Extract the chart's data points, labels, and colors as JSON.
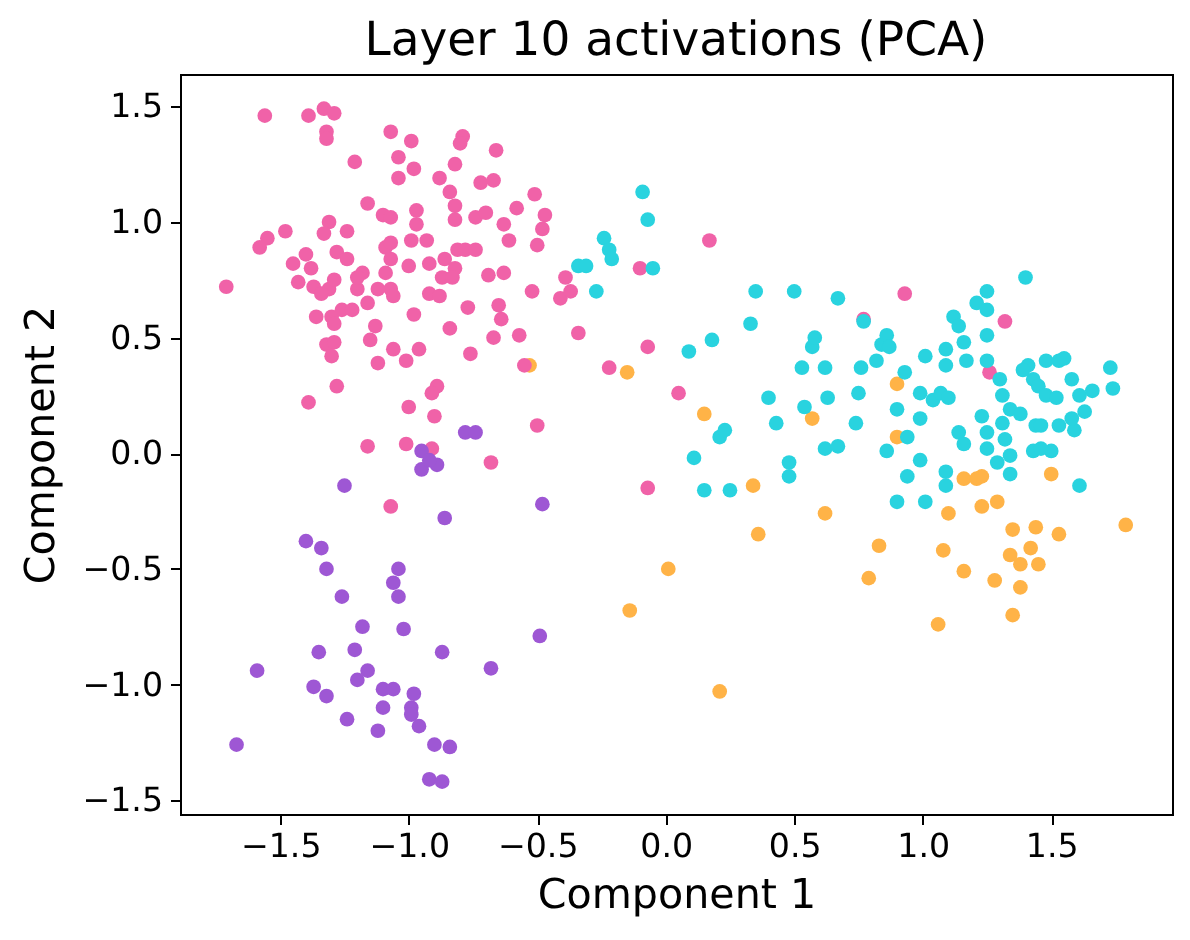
{
  "chart_data": {
    "type": "scatter",
    "title": "Layer 10 activations (PCA)",
    "xlabel": "Component 1",
    "ylabel": "Component 2",
    "marker": "circle",
    "xlim": [
      -1.89,
      1.97
    ],
    "ylim": [
      -1.56,
      1.64
    ],
    "xticks": [
      {
        "value": -1.5,
        "label": "−1.5"
      },
      {
        "value": -1,
        "label": "−1.0"
      },
      {
        "value": -0.5,
        "label": "−0.5"
      },
      {
        "value": 0,
        "label": "0.0"
      },
      0.5,
      {
        "value": 1,
        "label": "1.0"
      },
      1.5
    ],
    "yticks": [
      {
        "value": -1.5,
        "label": "−1.5"
      },
      {
        "value": -1,
        "label": "−1.0"
      },
      {
        "value": -0.5,
        "label": "−0.5"
      },
      {
        "value": 0,
        "label": "0.0"
      },
      0.5,
      {
        "value": 1,
        "label": "1.0"
      },
      1.5
    ],
    "series": [
      {
        "color": "#ffb347",
        "x": [
          -0.15,
          -0.53,
          0.15,
          0.34,
          0.36,
          0.01,
          -0.14,
          0.21,
          0.57,
          0.62,
          0.83,
          0.79,
          0.9,
          0.9,
          1.06,
          1.08,
          1.1,
          1.16,
          1.21,
          1.23,
          1.23,
          1.29,
          1.16,
          1.35,
          1.44,
          1.53,
          1.42,
          1.34,
          1.38,
          1.45,
          1.28,
          1.38,
          1.35,
          1.79,
          1.5
        ],
        "values": [
          0.35,
          0.38,
          0.17,
          -0.14,
          -0.35,
          -0.5,
          -0.68,
          -1.03,
          0.15,
          -0.26,
          -0.4,
          -0.54,
          0.3,
          0.07,
          -0.74,
          -0.42,
          -0.26,
          -0.11,
          -0.11,
          -0.1,
          -0.23,
          -0.21,
          -0.51,
          -0.33,
          -0.32,
          -0.35,
          -0.41,
          -0.44,
          -0.48,
          -0.48,
          -0.55,
          -0.58,
          -0.7,
          -0.31,
          -0.09
        ]
      },
      {
        "color": "#f062a8",
        "x": [
          -1.56,
          -1.39,
          -1.33,
          -1.29,
          -1.32,
          -1.32,
          -1.07,
          -0.99,
          -0.79,
          -0.8,
          -0.66,
          -1.21,
          -1.04,
          -0.98,
          -1.04,
          -0.82,
          -0.88,
          -0.84,
          -0.72,
          -0.67,
          -0.51,
          -1.16,
          -1.1,
          -1.07,
          -0.97,
          -0.97,
          -0.82,
          -0.82,
          -0.74,
          -0.7,
          -0.63,
          -0.58,
          -0.47,
          -0.48,
          -0.61,
          -0.5,
          -1.48,
          -1.55,
          -1.58,
          -1.31,
          -1.33,
          -1.24,
          -1.28,
          -1.24,
          -1.4,
          -1.45,
          -1.38,
          -1.43,
          -1.71,
          -1.37,
          -1.31,
          -1.2,
          -1.18,
          -1.09,
          -1.07,
          -1.07,
          -0.99,
          -0.93,
          -1.0,
          -0.92,
          -0.86,
          -0.81,
          -0.78,
          -0.74,
          -0.82,
          -0.87,
          -0.83,
          -1.09,
          -1.07,
          -1.06,
          -1.12,
          -1.2,
          -1.29,
          -1.34,
          -1.36,
          -1.3,
          -1.26,
          -1.22,
          -1.29,
          -1.16,
          -1.13,
          -1.15,
          -1.32,
          -1.29,
          -1.3,
          -1.28,
          -1.39,
          -1.12,
          -1.06,
          -1.01,
          -0.96,
          -0.98,
          -0.92,
          -0.88,
          -0.77,
          -0.84,
          -0.76,
          -0.65,
          -0.64,
          -0.69,
          -0.63,
          -0.67,
          -0.57,
          -0.52,
          -0.55,
          -0.89,
          -0.91,
          -1.0,
          -0.9,
          -1.16,
          -1.01,
          -0.91,
          -0.68,
          -0.5,
          -1.07,
          -0.41,
          -0.39,
          -0.37,
          -0.34,
          -0.22,
          -0.1,
          -0.07,
          0.05,
          0.17,
          -0.07,
          0.93,
          0.77,
          1.32,
          1.26
        ],
        "values": [
          1.46,
          1.46,
          1.49,
          1.47,
          1.39,
          1.36,
          1.39,
          1.35,
          1.37,
          1.34,
          1.31,
          1.26,
          1.28,
          1.23,
          1.19,
          1.25,
          1.19,
          1.13,
          1.17,
          1.18,
          1.12,
          1.08,
          1.03,
          1.02,
          1.05,
          0.99,
          1.07,
          1.01,
          1.02,
          1.04,
          0.99,
          1.06,
          1.03,
          0.97,
          0.92,
          0.9,
          0.96,
          0.93,
          0.89,
          1.0,
          0.95,
          0.96,
          0.87,
          0.84,
          0.86,
          0.82,
          0.8,
          0.74,
          0.72,
          0.72,
          0.71,
          0.71,
          0.78,
          0.89,
          0.91,
          0.84,
          0.92,
          0.92,
          0.81,
          0.82,
          0.84,
          0.88,
          0.88,
          0.88,
          0.8,
          0.76,
          0.76,
          0.78,
          0.71,
          0.68,
          0.71,
          0.76,
          0.75,
          0.69,
          0.59,
          0.59,
          0.62,
          0.62,
          0.56,
          0.65,
          0.55,
          0.49,
          0.47,
          0.48,
          0.42,
          0.29,
          0.22,
          0.39,
          0.45,
          0.4,
          0.45,
          0.6,
          0.69,
          0.68,
          0.63,
          0.54,
          0.43,
          0.64,
          0.58,
          0.77,
          0.78,
          0.5,
          0.51,
          0.7,
          0.38,
          0.29,
          0.26,
          0.2,
          0.16,
          0.03,
          0.04,
          0.02,
          -0.04,
          0.12,
          -0.23,
          0.67,
          0.76,
          0.7,
          0.52,
          0.37,
          0.8,
          0.46,
          0.26,
          0.92,
          -0.15,
          0.69,
          0.58,
          0.57,
          0.35
        ]
      },
      {
        "color": "#9e57d4",
        "x": [
          -0.78,
          -0.74,
          -0.95,
          -0.89,
          -0.95,
          -0.92,
          -1.25,
          -0.86,
          -0.48,
          -1.4,
          -1.34,
          -1.32,
          -1.26,
          -1.04,
          -1.06,
          -1.04,
          -1.18,
          -1.02,
          -1.35,
          -1.21,
          -0.87,
          -1.59,
          -0.68,
          -0.49,
          -1.37,
          -1.32,
          -1.2,
          -1.16,
          -1.1,
          -1.06,
          -0.98,
          -1.1,
          -0.99,
          -0.99,
          -0.96,
          -1.24,
          -1.12,
          -1.67,
          -0.9,
          -0.84,
          -0.92,
          -0.87
        ],
        "values": [
          0.09,
          0.09,
          0.01,
          -0.05,
          -0.07,
          -0.03,
          -0.14,
          -0.28,
          -0.22,
          -0.38,
          -0.41,
          -0.5,
          -0.62,
          -0.5,
          -0.56,
          -0.62,
          -0.75,
          -0.76,
          -0.86,
          -0.85,
          -0.86,
          -0.94,
          -0.93,
          -0.79,
          -1.01,
          -1.05,
          -0.98,
          -0.94,
          -1.02,
          -1.02,
          -1.04,
          -1.1,
          -1.1,
          -1.13,
          -1.18,
          -1.15,
          -1.2,
          -1.26,
          -1.26,
          -1.27,
          -1.41,
          -1.42
        ]
      },
      {
        "color": "#29d3df",
        "x": [
          -0.09,
          -0.07,
          -0.05,
          -0.24,
          -0.22,
          -0.21,
          -0.34,
          -0.31,
          -0.27,
          0.09,
          0.18,
          0.11,
          0.21,
          0.23,
          0.15,
          0.25,
          0.33,
          0.35,
          0.5,
          0.4,
          0.43,
          0.48,
          0.48,
          0.54,
          0.53,
          0.57,
          0.58,
          0.62,
          0.63,
          0.62,
          0.67,
          0.67,
          0.74,
          0.75,
          0.76,
          0.77,
          0.84,
          0.86,
          0.87,
          0.82,
          0.86,
          0.9,
          0.93,
          0.94,
          0.99,
          0.94,
          0.9,
          1.01,
          0.99,
          0.99,
          1.01,
          1.04,
          1.07,
          1.1,
          1.09,
          1.09,
          1.12,
          1.14,
          1.16,
          1.17,
          1.09,
          1.09,
          1.14,
          1.16,
          1.21,
          1.25,
          1.25,
          1.25,
          1.25,
          1.23,
          1.25,
          1.25,
          1.3,
          1.31,
          1.34,
          1.31,
          1.32,
          1.34,
          1.34,
          1.29,
          1.4,
          1.41,
          1.43,
          1.45,
          1.48,
          1.52,
          1.48,
          1.53,
          1.55,
          1.38,
          1.44,
          1.43,
          1.5,
          1.46,
          1.39,
          1.58,
          1.61,
          1.63,
          1.66,
          1.59,
          1.73,
          1.74,
          1.61,
          1.53,
          1.58,
          1.46
        ],
        "values": [
          1.13,
          1.01,
          0.8,
          0.93,
          0.88,
          0.84,
          0.81,
          0.81,
          0.7,
          0.44,
          0.49,
          -0.02,
          0.07,
          0.1,
          -0.16,
          -0.16,
          0.56,
          0.7,
          0.7,
          0.24,
          0.13,
          -0.04,
          -0.1,
          0.2,
          0.37,
          0.46,
          0.5,
          0.37,
          0.24,
          0.02,
          0.67,
          0.03,
          0.13,
          0.26,
          0.37,
          0.57,
          0.47,
          0.51,
          0.46,
          0.4,
          0.01,
          0.19,
          0.35,
          0.07,
          -0.03,
          -0.1,
          -0.21,
          0.42,
          0.15,
          0.26,
          -0.21,
          0.23,
          0.26,
          0.24,
          0.38,
          0.45,
          0.59,
          0.55,
          0.48,
          0.4,
          -0.08,
          -0.14,
          0.09,
          0.04,
          0.65,
          0.7,
          0.62,
          0.51,
          0.4,
          0.16,
          0.09,
          0.02,
          0.32,
          0.25,
          0.19,
          0.13,
          0.06,
          -0.01,
          -0.09,
          -0.04,
          0.76,
          0.38,
          0.32,
          0.29,
          0.25,
          0.24,
          0.4,
          0.4,
          0.41,
          0.17,
          0.12,
          0.01,
          0.01,
          0.12,
          0.36,
          0.32,
          0.25,
          0.18,
          0.27,
          0.1,
          0.37,
          0.28,
          -0.14,
          0.12,
          0.15,
          0.02
        ]
      }
    ]
  }
}
